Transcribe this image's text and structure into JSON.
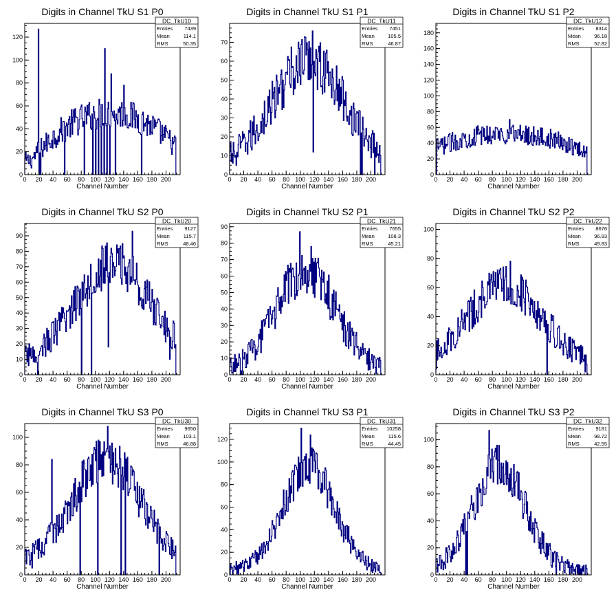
{
  "colors": {
    "line": "#000080",
    "axis": "#000000",
    "frame": "#000000"
  },
  "common": {
    "xlabel": "Channel Number",
    "xlim": [
      0,
      220
    ],
    "xticks": [
      0,
      20,
      40,
      60,
      80,
      100,
      120,
      140,
      160,
      180,
      200
    ]
  },
  "chart_data": [
    {
      "type": "histogram",
      "title": "Digits in Channel TkU S1 P0",
      "xlabel": "Channel Number",
      "stats": {
        "name": "DC_TkU10",
        "entries": "7439",
        "mean": "114.1",
        "rms": "50.35"
      },
      "ylim": [
        0,
        132
      ],
      "yticks": [
        0,
        20,
        40,
        60,
        80,
        100,
        120
      ],
      "shape": "flat",
      "peak": 54,
      "peak_x": 120,
      "width": 70,
      "base": 12,
      "spikes": [
        [
          20,
          127
        ],
        [
          19,
          127
        ],
        [
          113,
          110
        ],
        [
          100,
          87
        ],
        [
          122,
          88
        ],
        [
          140,
          78
        ]
      ],
      "drops": [
        [
          20,
          0
        ],
        [
          22,
          0
        ],
        [
          56,
          0
        ],
        [
          84,
          0
        ],
        [
          96,
          0
        ],
        [
          100,
          0
        ],
        [
          104,
          0
        ],
        [
          108,
          0
        ],
        [
          112,
          0
        ],
        [
          116,
          0
        ],
        [
          120,
          0
        ],
        [
          128,
          0
        ],
        [
          165,
          0
        ]
      ]
    },
    {
      "type": "histogram",
      "title": "Digits in Channel TkU S1 P1",
      "xlabel": "Channel Number",
      "stats": {
        "name": "DC_TkU11",
        "entries": "7451",
        "mean": "105.5",
        "rms": "46.87"
      },
      "ylim": [
        0,
        80
      ],
      "yticks": [
        0,
        10,
        20,
        30,
        40,
        50,
        60,
        70
      ],
      "shape": "bell",
      "peak": 60,
      "peak_x": 112,
      "width": 58,
      "base": 5,
      "spikes": [
        [
          117,
          76
        ],
        [
          106,
          73
        ]
      ],
      "drops": [
        [
          118,
          12
        ],
        [
          9,
          5
        ],
        [
          185,
          0
        ],
        [
          187,
          0
        ],
        [
          205,
          0
        ]
      ]
    },
    {
      "type": "histogram",
      "title": "Digits in Channel TkU S1 P2",
      "xlabel": "Channel Number",
      "stats": {
        "name": "DC_TkU12",
        "entries": "8314",
        "mean": "96.18",
        "rms": "52.82"
      },
      "ylim": [
        0,
        192
      ],
      "yticks": [
        0,
        20,
        40,
        60,
        80,
        100,
        120,
        140,
        160,
        180
      ],
      "shape": "flat",
      "peak": 52,
      "peak_x": 100,
      "width": 95,
      "base": 10,
      "spikes": [
        [
          104,
          70
        ]
      ],
      "drops": [
        [
          0,
          0
        ],
        [
          214,
          2
        ]
      ]
    },
    {
      "type": "histogram",
      "title": "Digits in Channel TkU S2 P0",
      "xlabel": "Channel Number",
      "stats": {
        "name": "DC_TkU20",
        "entries": "9127",
        "mean": "115.7",
        "rms": "48.46"
      },
      "ylim": [
        0,
        98
      ],
      "yticks": [
        0,
        10,
        20,
        30,
        40,
        50,
        60,
        70,
        80,
        90
      ],
      "shape": "bell",
      "peak": 72,
      "peak_x": 125,
      "width": 60,
      "base": 8,
      "spikes": [
        [
          152,
          93
        ],
        [
          138,
          85
        ]
      ],
      "drops": [
        [
          18,
          0
        ],
        [
          80,
          0
        ],
        [
          94,
          0
        ],
        [
          118,
          18
        ],
        [
          205,
          10
        ]
      ]
    },
    {
      "type": "histogram",
      "title": "Digits in Channel TkU S2 P1",
      "xlabel": "Channel Number",
      "stats": {
        "name": "DC_TkU21",
        "entries": "7655",
        "mean": "108.3",
        "rms": "45.21"
      },
      "ylim": [
        0,
        92
      ],
      "yticks": [
        0,
        10,
        20,
        30,
        40,
        50,
        60,
        70,
        80,
        90
      ],
      "shape": "bell",
      "peak": 64,
      "peak_x": 108,
      "width": 48,
      "base": 3,
      "spikes": [
        [
          99,
          87
        ],
        [
          115,
          78
        ]
      ],
      "drops": [
        [
          8,
          2
        ],
        [
          15,
          0
        ],
        [
          17,
          0
        ],
        [
          214,
          3
        ]
      ]
    },
    {
      "type": "histogram",
      "title": "Digits in Channel TkU S2 P2",
      "xlabel": "Channel Number",
      "stats": {
        "name": "DC_TkU22",
        "entries": "8676",
        "mean": "96.93",
        "rms": "49.83"
      },
      "ylim": [
        0,
        104
      ],
      "yticks": [
        0,
        20,
        40,
        60,
        80,
        100
      ],
      "shape": "bell",
      "peak": 62,
      "peak_x": 98,
      "width": 60,
      "base": 6,
      "spikes": [
        [
          105,
          78
        ],
        [
          90,
          72
        ]
      ],
      "drops": [
        [
          157,
          0
        ],
        [
          0,
          4
        ],
        [
          211,
          2
        ]
      ]
    },
    {
      "type": "histogram",
      "title": "Digits in Channel TkU S3 P0",
      "xlabel": "Channel Number",
      "stats": {
        "name": "DC_TkU30",
        "entries": "9650",
        "mean": "103.1",
        "rms": "46.88"
      },
      "ylim": [
        0,
        110
      ],
      "yticks": [
        0,
        20,
        40,
        60,
        80,
        100
      ],
      "shape": "bell",
      "peak": 84,
      "peak_x": 115,
      "width": 55,
      "base": 8,
      "spikes": [
        [
          117,
          108
        ],
        [
          38,
          84
        ],
        [
          100,
          83
        ],
        [
          128,
          92
        ]
      ],
      "drops": [
        [
          2,
          8
        ],
        [
          10,
          5
        ],
        [
          78,
          0
        ],
        [
          103,
          0
        ],
        [
          136,
          0
        ],
        [
          142,
          0
        ],
        [
          190,
          0
        ]
      ]
    },
    {
      "type": "histogram",
      "title": "Digits in Channel TkU S3 P1",
      "xlabel": "Channel Number",
      "stats": {
        "name": "DC_TkU31",
        "entries": "10258",
        "mean": "115.6",
        "rms": "44.45"
      },
      "ylim": [
        0,
        134
      ],
      "yticks": [
        0,
        20,
        40,
        60,
        80,
        100,
        120
      ],
      "shape": "bell",
      "peak": 96,
      "peak_x": 112,
      "width": 42,
      "base": 4,
      "spikes": [
        [
          101,
          130
        ],
        [
          114,
          124
        ]
      ],
      "drops": [
        [
          0,
          0
        ],
        [
          214,
          2
        ]
      ]
    },
    {
      "type": "histogram",
      "title": "Digits in Channel TkU S3 P2",
      "xlabel": "Channel Number",
      "stats": {
        "name": "DC_TkU32",
        "entries": "9181",
        "mean": "98.72",
        "rms": "42.55"
      },
      "ylim": [
        0,
        112
      ],
      "yticks": [
        0,
        20,
        40,
        60,
        80,
        100
      ],
      "shape": "bell",
      "peak": 82,
      "peak_x": 90,
      "width": 42,
      "base": 3,
      "spikes": [
        [
          75,
          107
        ],
        [
          86,
          96
        ]
      ],
      "drops": [
        [
          42,
          0
        ],
        [
          44,
          0
        ],
        [
          170,
          0
        ],
        [
          2,
          2
        ],
        [
          214,
          2
        ]
      ]
    }
  ]
}
